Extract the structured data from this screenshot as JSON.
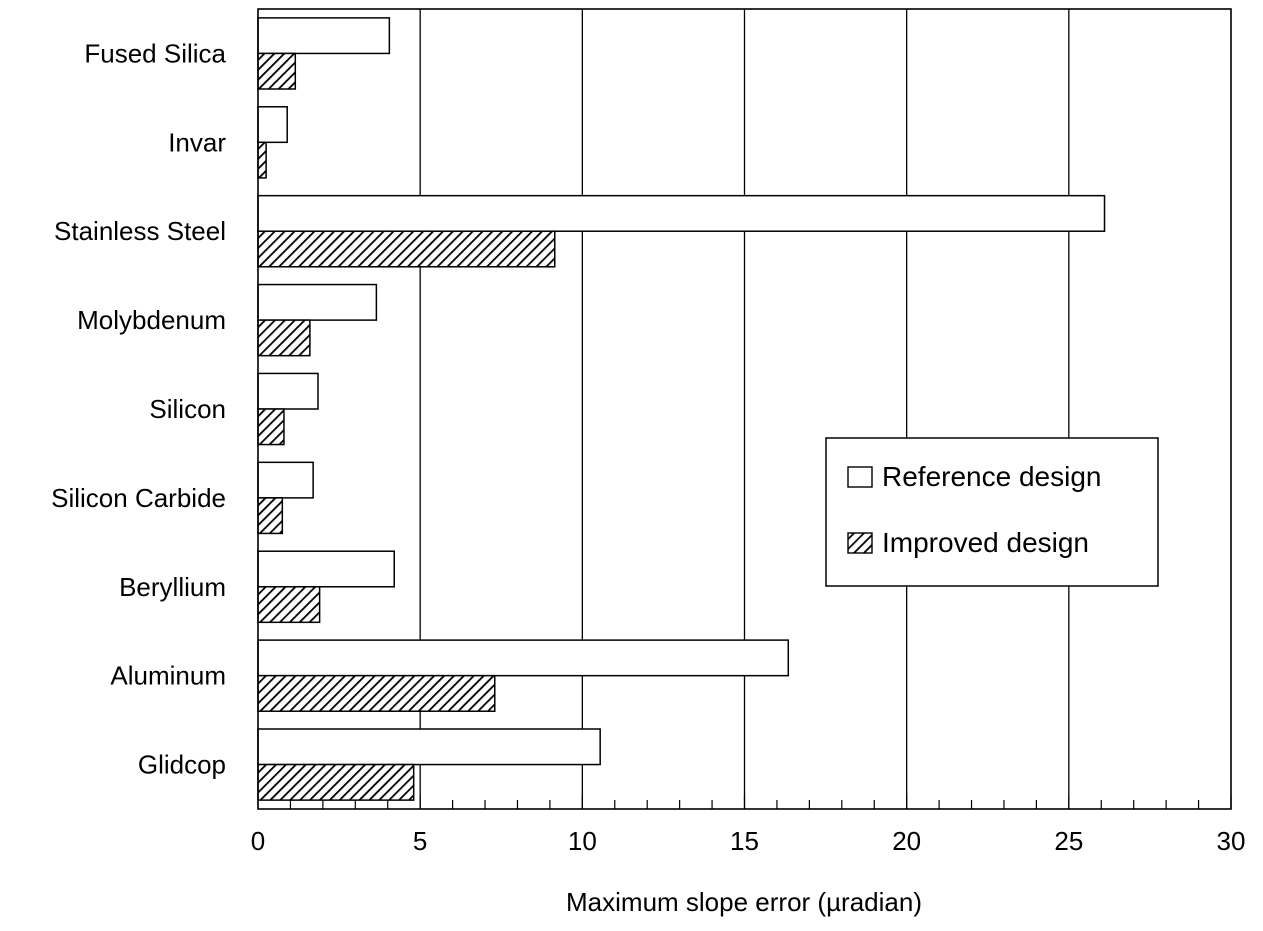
{
  "chart_data": {
    "type": "bar",
    "orientation": "horizontal",
    "title": "",
    "xlabel": "Maximum slope error (µradian)",
    "ylabel": "",
    "xlim": [
      0,
      30
    ],
    "x_ticks": [
      0,
      5,
      10,
      15,
      20,
      25,
      30
    ],
    "x_tick_labels": [
      "0",
      "5",
      "10",
      "15",
      "20",
      "25",
      "30"
    ],
    "minor_tick_step": 1,
    "grid": "vertical major gridlines",
    "legend_position": "right-center",
    "categories": [
      "Fused Silica",
      "Invar",
      "Stainless Steel",
      "Molybdenum",
      "Silicon",
      "Silicon Carbide",
      "Beryllium",
      "Aluminum",
      "Glidcop"
    ],
    "series": [
      {
        "name": "Reference design",
        "fill": "white",
        "values": [
          4.05,
          0.9,
          26.1,
          3.65,
          1.85,
          1.7,
          4.2,
          16.35,
          10.55
        ]
      },
      {
        "name": "Improved design",
        "fill": "hatched",
        "values": [
          1.15,
          0.25,
          9.15,
          1.6,
          0.8,
          0.75,
          1.9,
          7.3,
          4.8
        ]
      }
    ],
    "colors": {
      "stroke": "#000000",
      "background": "#ffffff",
      "grid": "#000000"
    }
  }
}
